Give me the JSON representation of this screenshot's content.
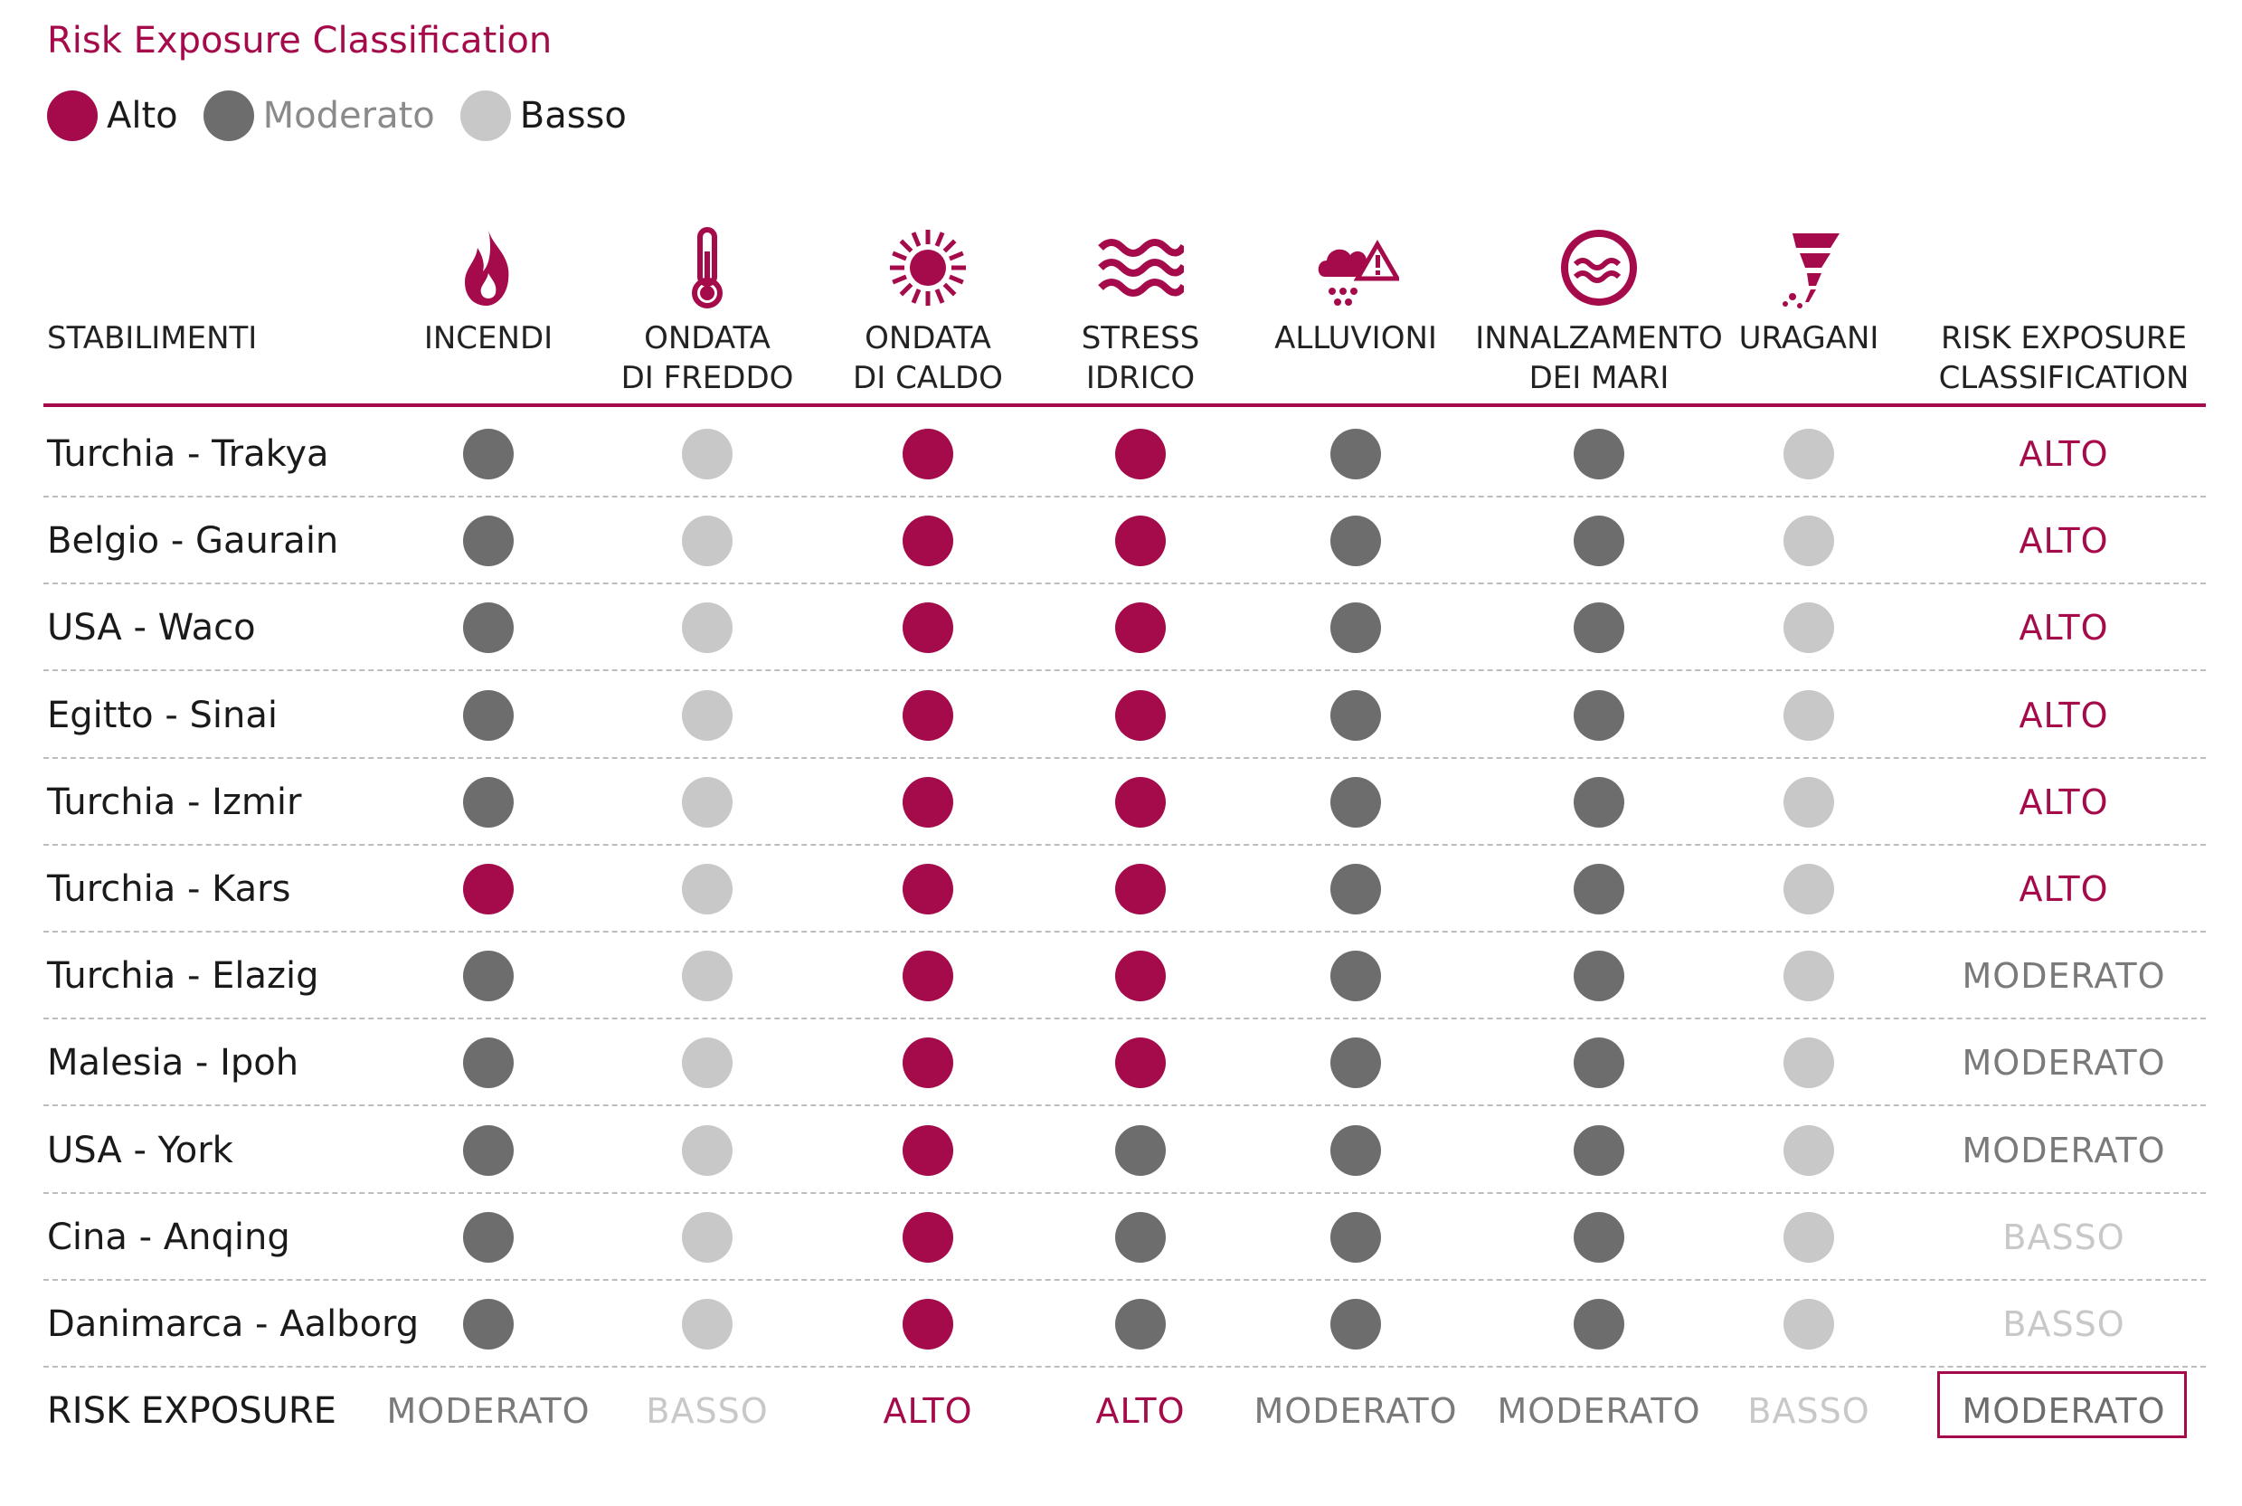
{
  "title": "Risk Exposure Classification",
  "colors": {
    "alto": "#a50a4a",
    "moderato": "#6d6d6d",
    "basso": "#c8c8c8"
  },
  "legend": [
    {
      "key": "alto",
      "label": "Alto"
    },
    {
      "key": "moderato",
      "label": "Moderato"
    },
    {
      "key": "basso",
      "label": "Basso"
    }
  ],
  "header": {
    "stabilimenti": "STABILIMENTI",
    "columns": [
      {
        "icon": "fire-icon",
        "lines": [
          "INCENDI"
        ]
      },
      {
        "icon": "thermometer-icon",
        "lines": [
          "ONDATA",
          "DI FREDDO"
        ]
      },
      {
        "icon": "sun-icon",
        "lines": [
          "ONDATA",
          "DI CALDO"
        ]
      },
      {
        "icon": "waves-icon",
        "lines": [
          "STRESS",
          "IDRICO"
        ]
      },
      {
        "icon": "rain-cloud-warning-icon",
        "lines": [
          "ALLUVIONI"
        ]
      },
      {
        "icon": "sea-level-icon",
        "lines": [
          "INNALZAMENTO",
          "DEI MARI"
        ]
      },
      {
        "icon": "tornado-icon",
        "lines": [
          "URAGANI"
        ]
      }
    ],
    "classification": [
      "RISK EXPOSURE",
      "CLASSIFICATION"
    ]
  },
  "rows": [
    {
      "name": "Turchia - Trakya",
      "risks": [
        "moderato",
        "basso",
        "alto",
        "alto",
        "moderato",
        "moderato",
        "basso"
      ],
      "class": "ALTO",
      "class_key": "alto"
    },
    {
      "name": "Belgio - Gaurain",
      "risks": [
        "moderato",
        "basso",
        "alto",
        "alto",
        "moderato",
        "moderato",
        "basso"
      ],
      "class": "ALTO",
      "class_key": "alto"
    },
    {
      "name": "USA - Waco",
      "risks": [
        "moderato",
        "basso",
        "alto",
        "alto",
        "moderato",
        "moderato",
        "basso"
      ],
      "class": "ALTO",
      "class_key": "alto"
    },
    {
      "name": "Egitto - Sinai",
      "risks": [
        "moderato",
        "basso",
        "alto",
        "alto",
        "moderato",
        "moderato",
        "basso"
      ],
      "class": "ALTO",
      "class_key": "alto"
    },
    {
      "name": "Turchia - Izmir",
      "risks": [
        "moderato",
        "basso",
        "alto",
        "alto",
        "moderato",
        "moderato",
        "basso"
      ],
      "class": "ALTO",
      "class_key": "alto"
    },
    {
      "name": "Turchia - Kars",
      "risks": [
        "alto",
        "basso",
        "alto",
        "alto",
        "moderato",
        "moderato",
        "basso"
      ],
      "class": "ALTO",
      "class_key": "alto"
    },
    {
      "name": "Turchia - Elazig",
      "risks": [
        "moderato",
        "basso",
        "alto",
        "alto",
        "moderato",
        "moderato",
        "basso"
      ],
      "class": "MODERATO",
      "class_key": "moderato"
    },
    {
      "name": "Malesia - Ipoh",
      "risks": [
        "moderato",
        "basso",
        "alto",
        "alto",
        "moderato",
        "moderato",
        "basso"
      ],
      "class": "MODERATO",
      "class_key": "moderato"
    },
    {
      "name": "USA - York",
      "risks": [
        "moderato",
        "basso",
        "alto",
        "moderato",
        "moderato",
        "moderato",
        "basso"
      ],
      "class": "MODERATO",
      "class_key": "moderato"
    },
    {
      "name": "Cina - Anqing",
      "risks": [
        "moderato",
        "basso",
        "alto",
        "moderato",
        "moderato",
        "moderato",
        "basso"
      ],
      "class": "BASSO",
      "class_key": "basso"
    },
    {
      "name": "Danimarca - Aalborg",
      "risks": [
        "moderato",
        "basso",
        "alto",
        "moderato",
        "moderato",
        "moderato",
        "basso"
      ],
      "class": "BASSO",
      "class_key": "basso"
    }
  ],
  "totals": {
    "label": "RISK EXPOSURE",
    "values": [
      {
        "text": "MODERATO",
        "key": "moderato"
      },
      {
        "text": "BASSO",
        "key": "basso"
      },
      {
        "text": "ALTO",
        "key": "alto"
      },
      {
        "text": "ALTO",
        "key": "alto"
      },
      {
        "text": "MODERATO",
        "key": "moderato"
      },
      {
        "text": "MODERATO",
        "key": "moderato"
      },
      {
        "text": "BASSO",
        "key": "basso"
      }
    ],
    "overall": {
      "text": "MODERATO",
      "key": "moderato"
    }
  }
}
